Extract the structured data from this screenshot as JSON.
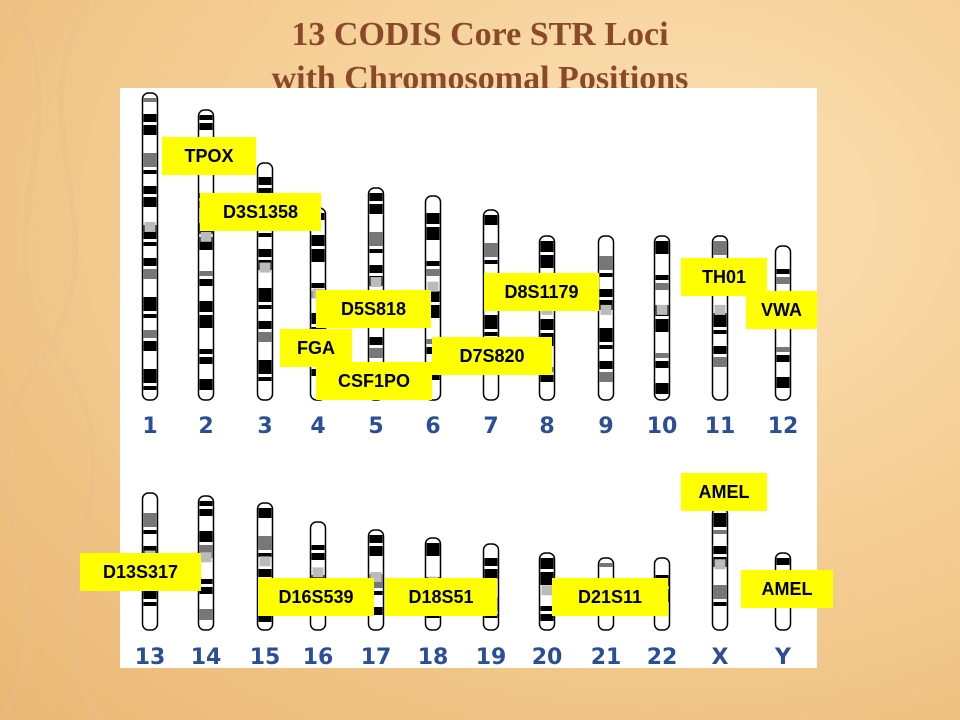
{
  "title_line1": "13 CODIS Core STR Loci",
  "title_line2": "with Chromosomal Positions",
  "chromosome_numbers_row1": [
    "1",
    "2",
    "3",
    "4",
    "5",
    "6",
    "7",
    "8",
    "9",
    "10",
    "11",
    "12"
  ],
  "chromosome_numbers_row2": [
    "13",
    "14",
    "15",
    "16",
    "17",
    "18",
    "19",
    "20",
    "21",
    "22",
    "X",
    "Y"
  ],
  "loci_labels": {
    "tpox": "TPOX",
    "d3s1358": "D3S1358",
    "d5s818": "D5S818",
    "fga": "FGA",
    "csf1po": "CSF1PO",
    "d7s820": "D7S820",
    "d8s1179": "D8S1179",
    "th01": "TH01",
    "vwa": "VWA",
    "amel_x": "AMEL",
    "amel_y": "AMEL",
    "d13s317": "D13S317",
    "d16s539": "D16S539",
    "d18s51": "D18S51",
    "d21s11": "D21S11"
  },
  "colors": {
    "label_background": "#ffff00",
    "title_color": "#8a4a2a",
    "chromosome_number_color": "#2b4f97",
    "background": "#f5cf96"
  }
}
